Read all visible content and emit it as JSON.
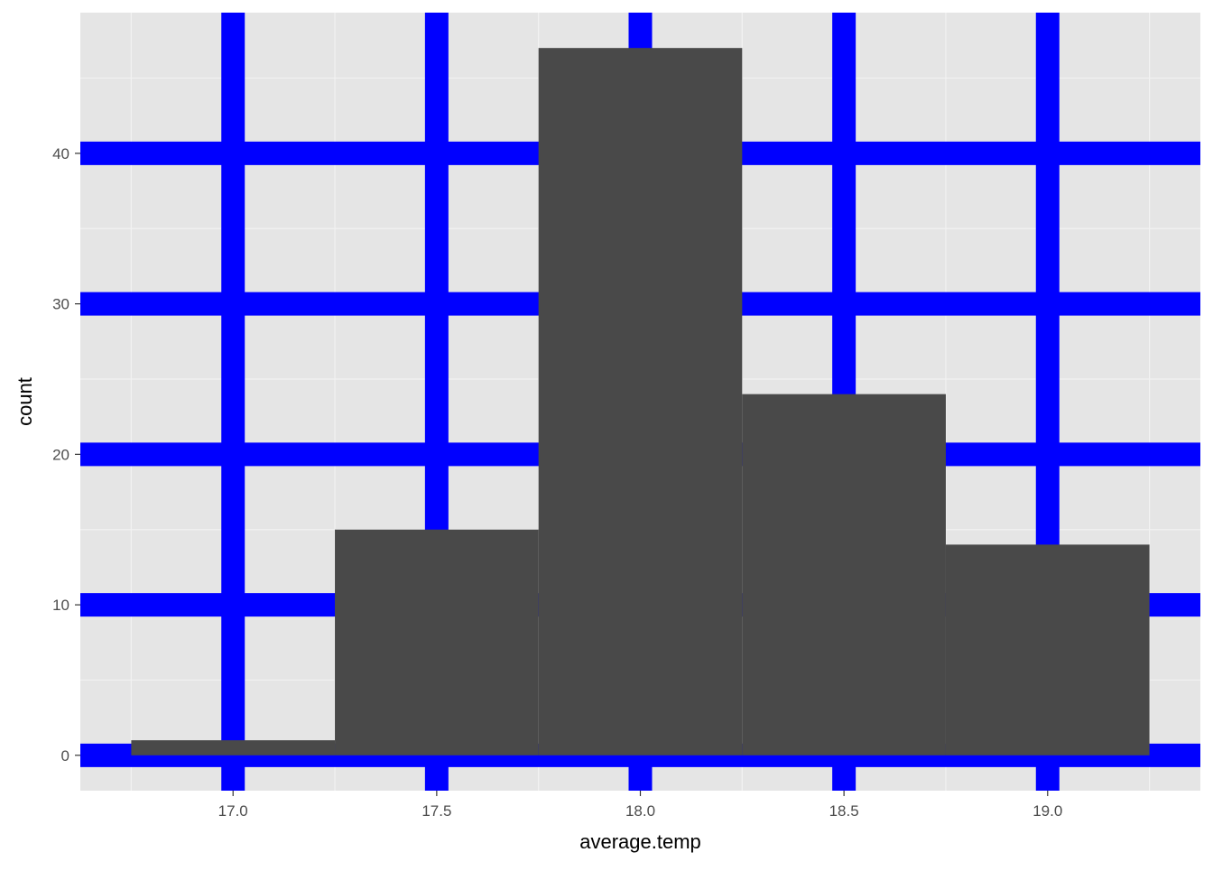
{
  "chart_data": {
    "type": "bar",
    "subtype": "histogram",
    "xlabel": "average.temp",
    "ylabel": "count",
    "x_ticks": [
      "17.0",
      "17.5",
      "18.0",
      "18.5",
      "19.0"
    ],
    "x_tick_values": [
      17.0,
      17.5,
      18.0,
      18.5,
      19.0
    ],
    "y_ticks": [
      "0",
      "10",
      "20",
      "30",
      "40"
    ],
    "y_tick_values": [
      0,
      10,
      20,
      30,
      40
    ],
    "xlim": [
      16.625,
      19.375
    ],
    "ylim": [
      -2.35,
      49.35
    ],
    "bin_width": 0.5,
    "bins": [
      {
        "x_min": 16.75,
        "x_max": 17.25,
        "count": 1
      },
      {
        "x_min": 17.25,
        "x_max": 17.75,
        "count": 15
      },
      {
        "x_min": 17.75,
        "x_max": 18.25,
        "count": 47
      },
      {
        "x_min": 18.25,
        "x_max": 18.75,
        "count": 24
      },
      {
        "x_min": 18.75,
        "x_max": 19.25,
        "count": 14
      }
    ],
    "grid": true,
    "colors": {
      "panel_background": "#e5e5e5",
      "minor_grid": "#f2f2f2",
      "major_grid": "#0000ff",
      "bar_fill": "#494949",
      "tick_label": "#4d4d4d",
      "axis_title": "#000000"
    }
  }
}
